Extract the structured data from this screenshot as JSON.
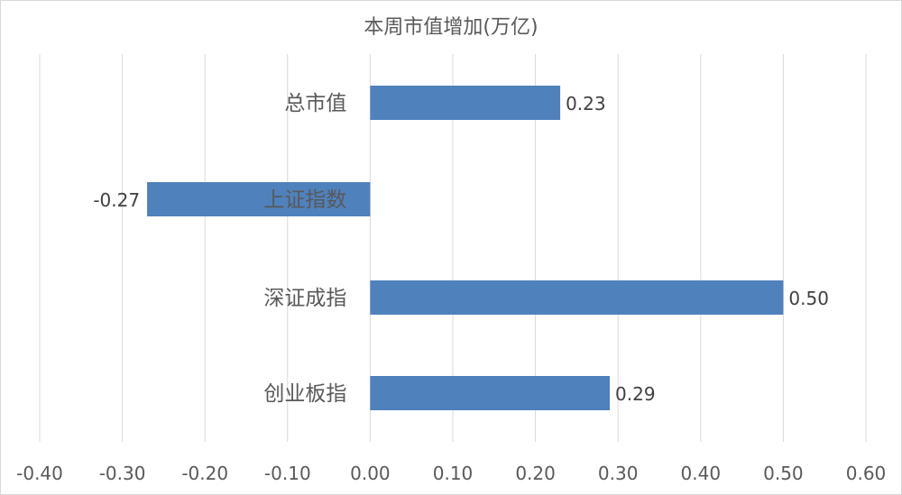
{
  "chart_data": {
    "type": "bar",
    "orientation": "horizontal",
    "title": "本周市值增加(万亿)",
    "categories": [
      "总市值",
      "上证指数",
      "深证成指",
      "创业板指"
    ],
    "values": [
      0.23,
      -0.27,
      0.5,
      0.29
    ],
    "data_labels": [
      "0.23",
      "-0.27",
      "0.50",
      "0.29"
    ],
    "xlim": [
      -0.4,
      0.6
    ],
    "x_ticks": [
      -0.4,
      -0.3,
      -0.2,
      -0.1,
      0.0,
      0.1,
      0.2,
      0.3,
      0.4,
      0.5,
      0.6
    ],
    "x_tick_labels": [
      "-0.40",
      "-0.30",
      "-0.20",
      "-0.10",
      "0.00",
      "0.10",
      "0.20",
      "0.30",
      "0.40",
      "0.50",
      "0.60"
    ],
    "xlabel": "",
    "ylabel": "",
    "grid": true,
    "legend": "none",
    "bar_color": "#4f81bd",
    "grid_color": "#d9d9d9"
  }
}
